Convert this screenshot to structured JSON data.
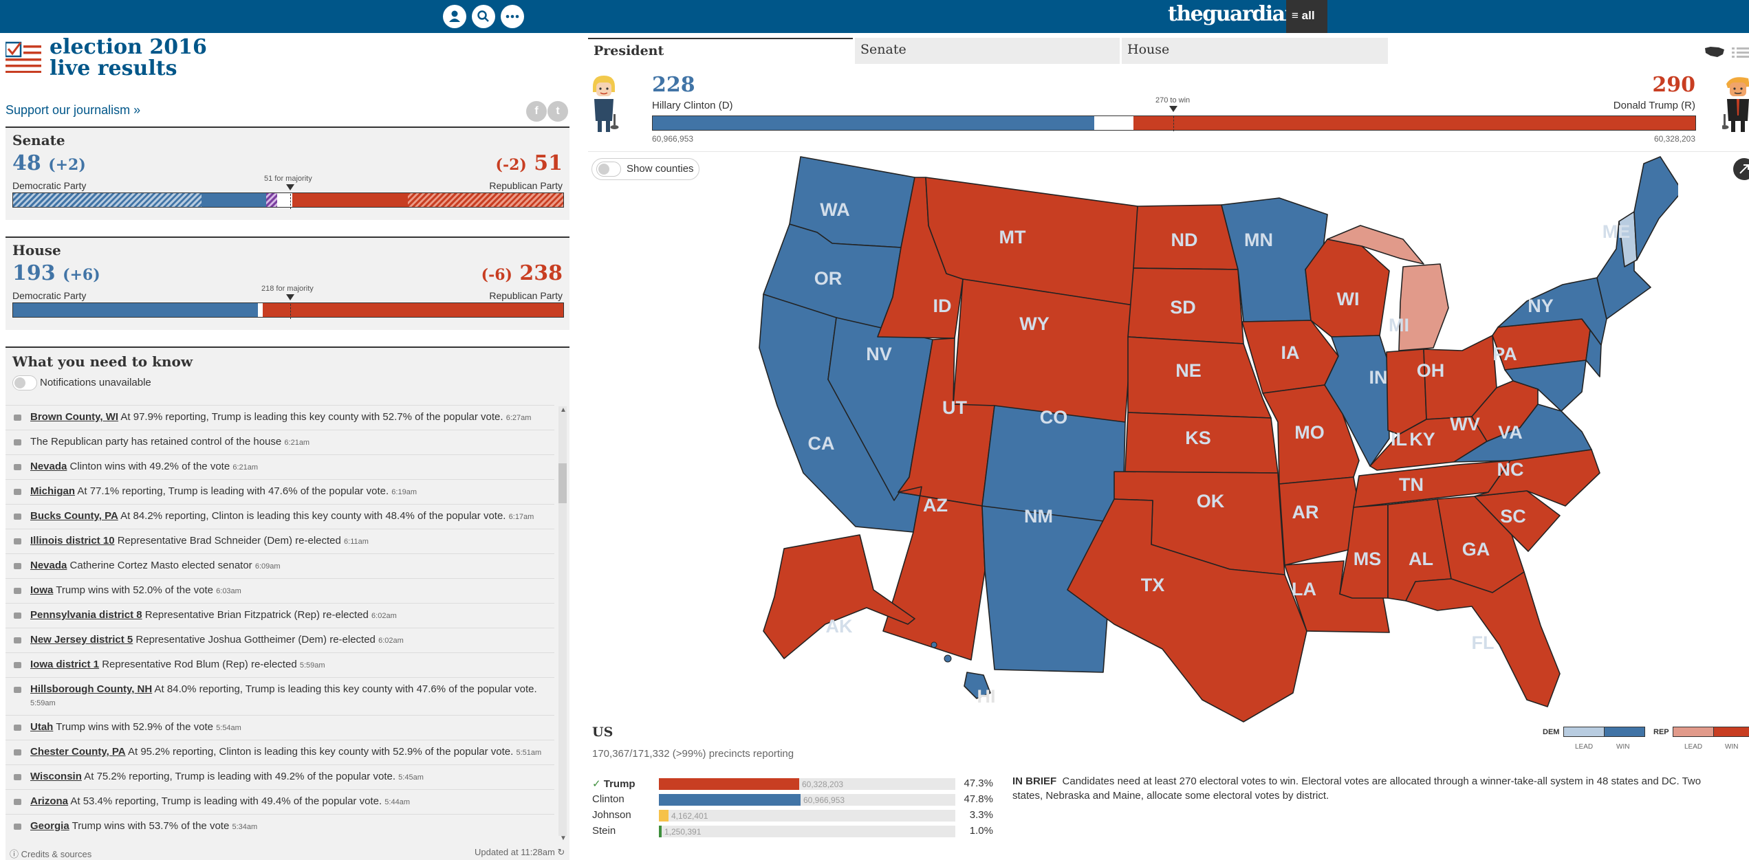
{
  "header": {
    "brand": "theguardian",
    "menu_label": "≡ all",
    "icons": [
      "profile-icon",
      "search-icon",
      "more-icon"
    ]
  },
  "logo": {
    "line1": "election 2016",
    "line2": "live results"
  },
  "support_link": "Support our journalism »",
  "share_icons": [
    "facebook-icon",
    "twitter-icon"
  ],
  "senate": {
    "title": "Senate",
    "dem_seats": "48",
    "dem_change": "(+2)",
    "rep_change": "(-2)",
    "rep_seats": "51",
    "dem_party": "Democratic Party",
    "rep_party": "Republican Party",
    "majority_label": "51 for majority",
    "dem_fraction": 0.46,
    "other_fraction": 0.02,
    "rep_fraction": 0.49
  },
  "house": {
    "title": "House",
    "dem_seats": "193",
    "dem_change": "(+6)",
    "rep_change": "(-6)",
    "rep_seats": "238",
    "dem_party": "Democratic Party",
    "rep_party": "Republican Party",
    "majority_label": "218 for majority",
    "dem_fraction": 0.444,
    "rep_fraction": 0.547
  },
  "what_you_need_to_know": {
    "title": "What you need to know",
    "notifications": "Notifications unavailable",
    "items": [
      {
        "link": "Brown County, WI",
        "text": " At 97.9% reporting, Trump is leading this key county with 52.7% of the popular vote.",
        "time": "6:27am"
      },
      {
        "link": "",
        "text": "The Republican party has retained control of the house",
        "time": "6:21am"
      },
      {
        "link": "Nevada",
        "text": " Clinton wins with 49.2% of the vote",
        "time": "6:21am"
      },
      {
        "link": "Michigan",
        "text": " At 77.1% reporting, Trump is leading with 47.6% of the popular vote.",
        "time": "6:19am"
      },
      {
        "link": "Bucks County, PA",
        "text": " At 84.2% reporting, Clinton is leading this key county with 48.4% of the popular vote.",
        "time": "6:17am"
      },
      {
        "link": "Illinois district 10",
        "text": " Representative Brad Schneider (Dem) re-elected",
        "time": "6:11am"
      },
      {
        "link": "Nevada",
        "text": " Catherine Cortez Masto elected senator",
        "time": "6:09am"
      },
      {
        "link": "Iowa",
        "text": " Trump wins with 52.0% of the vote",
        "time": "6:03am"
      },
      {
        "link": "Pennsylvania district 8",
        "text": " Representative Brian Fitzpatrick (Rep) re-elected",
        "time": "6:02am"
      },
      {
        "link": "New Jersey district 5",
        "text": " Representative Joshua Gottheimer (Dem) re-elected",
        "time": "6:02am"
      },
      {
        "link": "Iowa district 1",
        "text": " Representative Rod Blum (Rep) re-elected",
        "time": "5:59am"
      },
      {
        "link": "Hillsborough County, NH",
        "text": " At 84.0% reporting, Trump is leading this key county with 47.6% of the popular vote.",
        "time": "5:59am"
      },
      {
        "link": "Utah",
        "text": " Trump wins with 52.9% of the vote",
        "time": "5:54am"
      },
      {
        "link": "Chester County, PA",
        "text": " At 95.2% reporting, Clinton is leading this key county with 52.9% of the popular vote.",
        "time": "5:51am"
      },
      {
        "link": "Wisconsin",
        "text": " At 75.2% reporting, Trump is leading with 49.2% of the popular vote.",
        "time": "5:45am"
      },
      {
        "link": "Arizona",
        "text": " At 53.4% reporting, Trump is leading with 49.4% of the popular vote.",
        "time": "5:44am"
      },
      {
        "link": "Georgia",
        "text": " Trump wins with 53.7% of the vote",
        "time": "5:34am"
      }
    ]
  },
  "footer": {
    "credits": "Credits & sources",
    "updated": "Updated at 11:28am"
  },
  "tabs": [
    {
      "label": "President",
      "active": true
    },
    {
      "label": "Senate",
      "active": false
    },
    {
      "label": "House",
      "active": false
    }
  ],
  "president": {
    "dem_votes_ev": "228",
    "rep_votes_ev": "290",
    "dem_name": "Hillary Clinton (D)",
    "rep_name": "Donald Trump (R)",
    "dem_popular": "60,966,953",
    "rep_popular": "60,328,203",
    "to_win_label": "270 to win",
    "dem_fraction": 0.4237,
    "rep_fraction": 0.539
  },
  "map": {
    "show_counties": "Show counties",
    "colors": {
      "dem_win": "#4174a6",
      "dem_lead": "#b8cce0",
      "rep_win": "#c83e22",
      "rep_lead": "#e19a8a"
    },
    "states": [
      "WA",
      "OR",
      "CA",
      "NV",
      "ID",
      "MT",
      "WY",
      "UT",
      "AZ",
      "CO",
      "NM",
      "ND",
      "SD",
      "NE",
      "KS",
      "OK",
      "TX",
      "MN",
      "IA",
      "MO",
      "AR",
      "LA",
      "WI",
      "IL",
      "MI",
      "IN",
      "OH",
      "KY",
      "TN",
      "MS",
      "AL",
      "GA",
      "FL",
      "SC",
      "NC",
      "VA",
      "WV",
      "PA",
      "NY",
      "ME",
      "AK",
      "HI"
    ]
  },
  "us_summary": {
    "title": "US",
    "precincts": "170,367/171,332 (>99%) precincts reporting",
    "candidates": [
      {
        "name": "Trump",
        "votes": "60,328,203",
        "pct": "47.3%",
        "fraction": 0.473,
        "color": "#c83e22",
        "winner": true
      },
      {
        "name": "Clinton",
        "votes": "60,966,953",
        "pct": "47.8%",
        "fraction": 0.478,
        "color": "#4174a6",
        "winner": false
      },
      {
        "name": "Johnson",
        "votes": "4,162,401",
        "pct": "3.3%",
        "fraction": 0.033,
        "color": "#f6c24a",
        "winner": false
      },
      {
        "name": "Stein",
        "votes": "1,250,391",
        "pct": "1.0%",
        "fraction": 0.01,
        "color": "#3e8e3b",
        "winner": false
      }
    ],
    "in_brief_label": "IN BRIEF",
    "in_brief_text": "Candidates need at least 270 electoral votes to win. Electoral votes are allocated through a winner-take-all system in 48 states and DC. Two states, Nebraska and Maine, allocate some electoral votes by district."
  },
  "legend": {
    "dem": "DEM",
    "rep": "REP",
    "lead": "LEAD",
    "win": "WIN"
  }
}
